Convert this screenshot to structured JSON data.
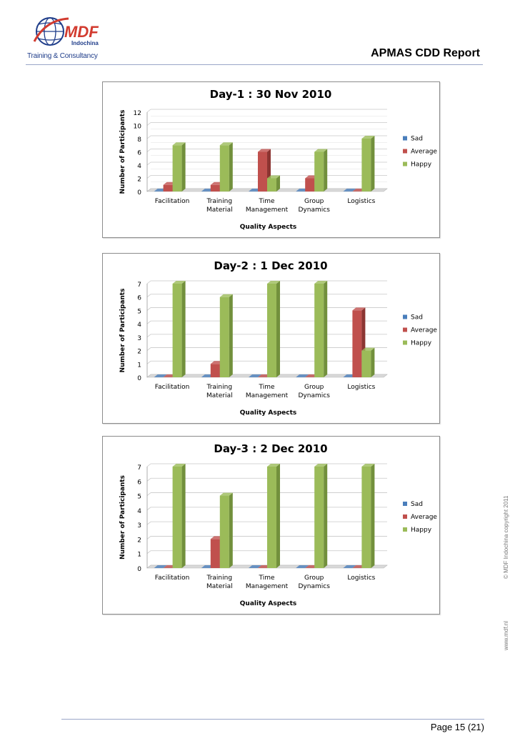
{
  "header": {
    "logo_text": "MDF",
    "logo_subtext": "Indochina",
    "tagline": "Training & Consultancy",
    "report_title": "APMAS CDD Report"
  },
  "side": {
    "copyright": "© MDF Indochina copyright 2011",
    "website": "www.mdf.nl"
  },
  "footer": {
    "page_label": "Page 15 (21)"
  },
  "colors": {
    "sad": "#4a7ebb",
    "average": "#c0504d",
    "happy": "#9bbb59",
    "accent": "#1f3d8a"
  },
  "chart_data": [
    {
      "type": "bar",
      "title": "Day-1 : 30 Nov 2010",
      "xlabel": "Quality Aspects",
      "ylabel": "Number of Participants",
      "ylim": [
        0,
        12
      ],
      "yticks": [
        "0",
        "2",
        "4",
        "6",
        "8",
        "10",
        "12"
      ],
      "categories": [
        "Facilitation",
        "Training Material",
        "Time Management",
        "Group Dynamics",
        "Logistics"
      ],
      "series": [
        {
          "name": "Sad",
          "values": [
            0,
            0,
            0,
            0,
            0
          ]
        },
        {
          "name": "Average",
          "values": [
            1,
            1,
            6,
            2,
            0
          ]
        },
        {
          "name": "Happy",
          "values": [
            7,
            7,
            2,
            6,
            8
          ]
        }
      ],
      "grid": true,
      "legend": "right"
    },
    {
      "type": "bar",
      "title": "Day-2 : 1 Dec 2010",
      "xlabel": "Quality Aspects",
      "ylabel": "Number of Participants",
      "ylim": [
        0,
        7
      ],
      "yticks": [
        "0",
        "1",
        "2",
        "3",
        "4",
        "5",
        "6",
        "7"
      ],
      "categories": [
        "Facilitation",
        "Training Material",
        "Time Management",
        "Group Dynamics",
        "Logistics"
      ],
      "series": [
        {
          "name": "Sad",
          "values": [
            0,
            0,
            0,
            0,
            0
          ]
        },
        {
          "name": "Average",
          "values": [
            0,
            1,
            0,
            0,
            5
          ]
        },
        {
          "name": "Happy",
          "values": [
            7,
            6,
            7,
            7,
            2
          ]
        }
      ],
      "grid": true,
      "legend": "right"
    },
    {
      "type": "bar",
      "title": "Day-3 : 2 Dec 2010",
      "xlabel": "Quality Aspects",
      "ylabel": "Number of Participants",
      "ylim": [
        0,
        7
      ],
      "yticks": [
        "0",
        "1",
        "2",
        "3",
        "4",
        "5",
        "6",
        "7"
      ],
      "categories": [
        "Facilitation",
        "Training Material",
        "Time Management",
        "Group Dynamics",
        "Logistics"
      ],
      "series": [
        {
          "name": "Sad",
          "values": [
            0,
            0,
            0,
            0,
            0
          ]
        },
        {
          "name": "Average",
          "values": [
            0,
            2,
            0,
            0,
            0
          ]
        },
        {
          "name": "Happy",
          "values": [
            7,
            5,
            7,
            7,
            7
          ]
        }
      ],
      "grid": true,
      "legend": "right"
    }
  ]
}
